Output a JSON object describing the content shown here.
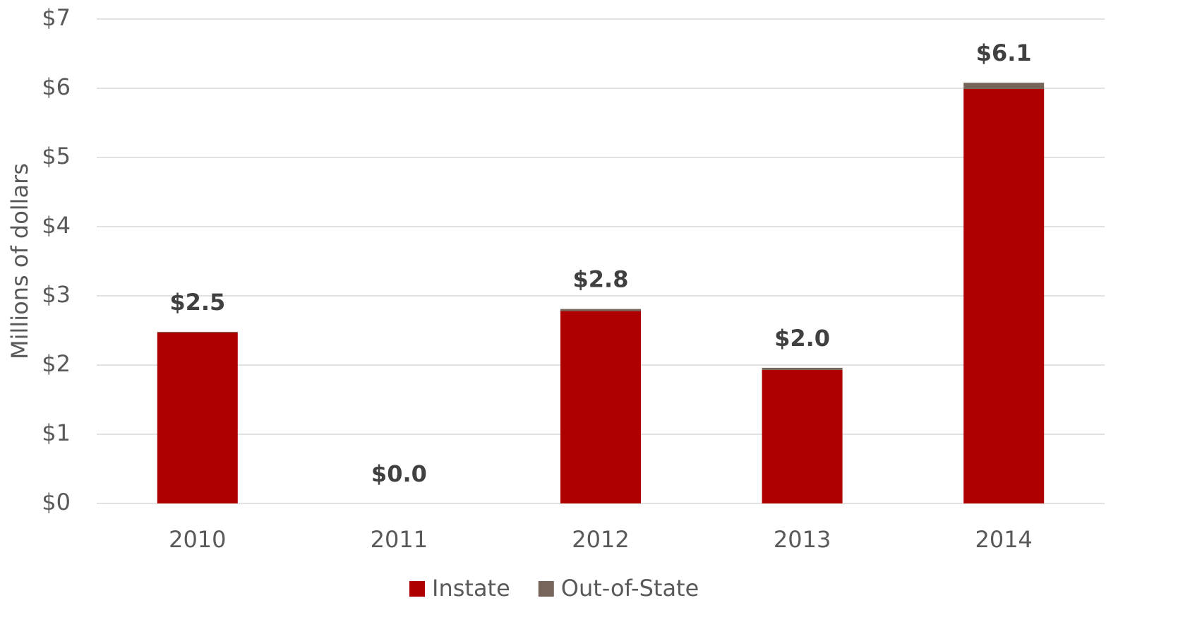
{
  "chart_data": {
    "type": "stacked_bar",
    "y_label": "Millions of dollars",
    "categories": [
      "2010",
      "2011",
      "2012",
      "2013",
      "2014"
    ],
    "series": [
      {
        "name": "Instate",
        "color": "#ae0000",
        "values": [
          2.47,
          0,
          2.78,
          1.93,
          5.99
        ]
      },
      {
        "name": "Out-of-State",
        "color": "#76655b",
        "values": [
          0.01,
          0,
          0.03,
          0.03,
          0.09
        ]
      }
    ],
    "totals": [
      2.48,
      0,
      2.81,
      1.96,
      6.08
    ],
    "total_labels": [
      "$2.5",
      "$0.0",
      "$2.8",
      "$2.0",
      "$6.1"
    ],
    "ylim": [
      0,
      7
    ],
    "yticks": [
      {
        "value": 0,
        "label": "$0"
      },
      {
        "value": 1,
        "label": "$1"
      },
      {
        "value": 2,
        "label": "$2"
      },
      {
        "value": 3,
        "label": "$3"
      },
      {
        "value": 4,
        "label": "$4"
      },
      {
        "value": 5,
        "label": "$5"
      },
      {
        "value": 6,
        "label": "$6"
      },
      {
        "value": 7,
        "label": "$7"
      }
    ],
    "grid": true,
    "legend": "bottom"
  }
}
